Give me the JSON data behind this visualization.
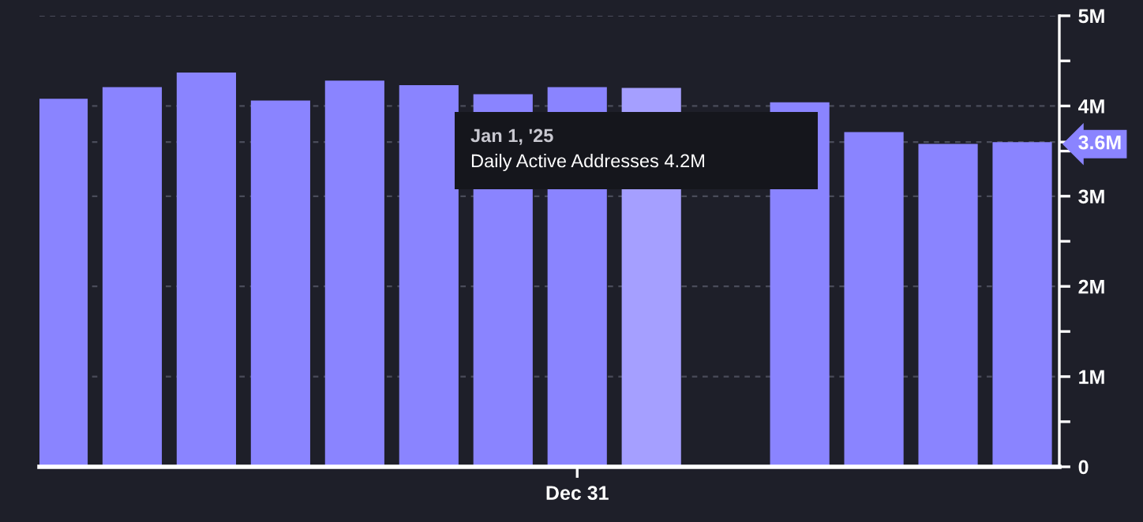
{
  "chart_data": {
    "type": "bar",
    "categories": [
      null,
      null,
      null,
      null,
      null,
      null,
      null,
      "Dec 31",
      null,
      null,
      null,
      null,
      null,
      null
    ],
    "values": [
      4080000,
      4210000,
      4370000,
      4060000,
      4280000,
      4230000,
      4130000,
      4210000,
      4200000,
      null,
      4040000,
      3710000,
      3580000,
      3600000
    ],
    "colors": [
      "#8a84ff",
      "#8a84ff",
      "#8a84ff",
      "#8a84ff",
      "#8a84ff",
      "#8a84ff",
      "#8a84ff",
      "#8a84ff",
      "#a59fff",
      "#8a84ff",
      "#8a84ff",
      "#8a84ff",
      "#8a84ff",
      "#8a84ff"
    ],
    "annotations": [
      "Jan 1, '25",
      "Daily Active Addresses 4.2M"
    ],
    "ylim": [
      0,
      5000000
    ],
    "yticks": [
      0,
      {
        "value": 500000,
        "label": null
      },
      {
        "value": 1000000,
        "label": "1M"
      },
      {
        "value": 1500000,
        "label": null
      },
      {
        "value": 2000000,
        "label": "2M"
      },
      {
        "value": 2500000,
        "label": null
      },
      {
        "value": 3000000,
        "label": "3M"
      },
      {
        "value": 3500000,
        "label": null
      },
      {
        "value": 3600000,
        "label": "3.6M"
      },
      {
        "value": 4000000,
        "label": "4M"
      },
      {
        "value": 4500000,
        "label": null
      },
      {
        "value": 5000000,
        "label": "5M"
      }
    ],
    "grid": "y"
  }
}
